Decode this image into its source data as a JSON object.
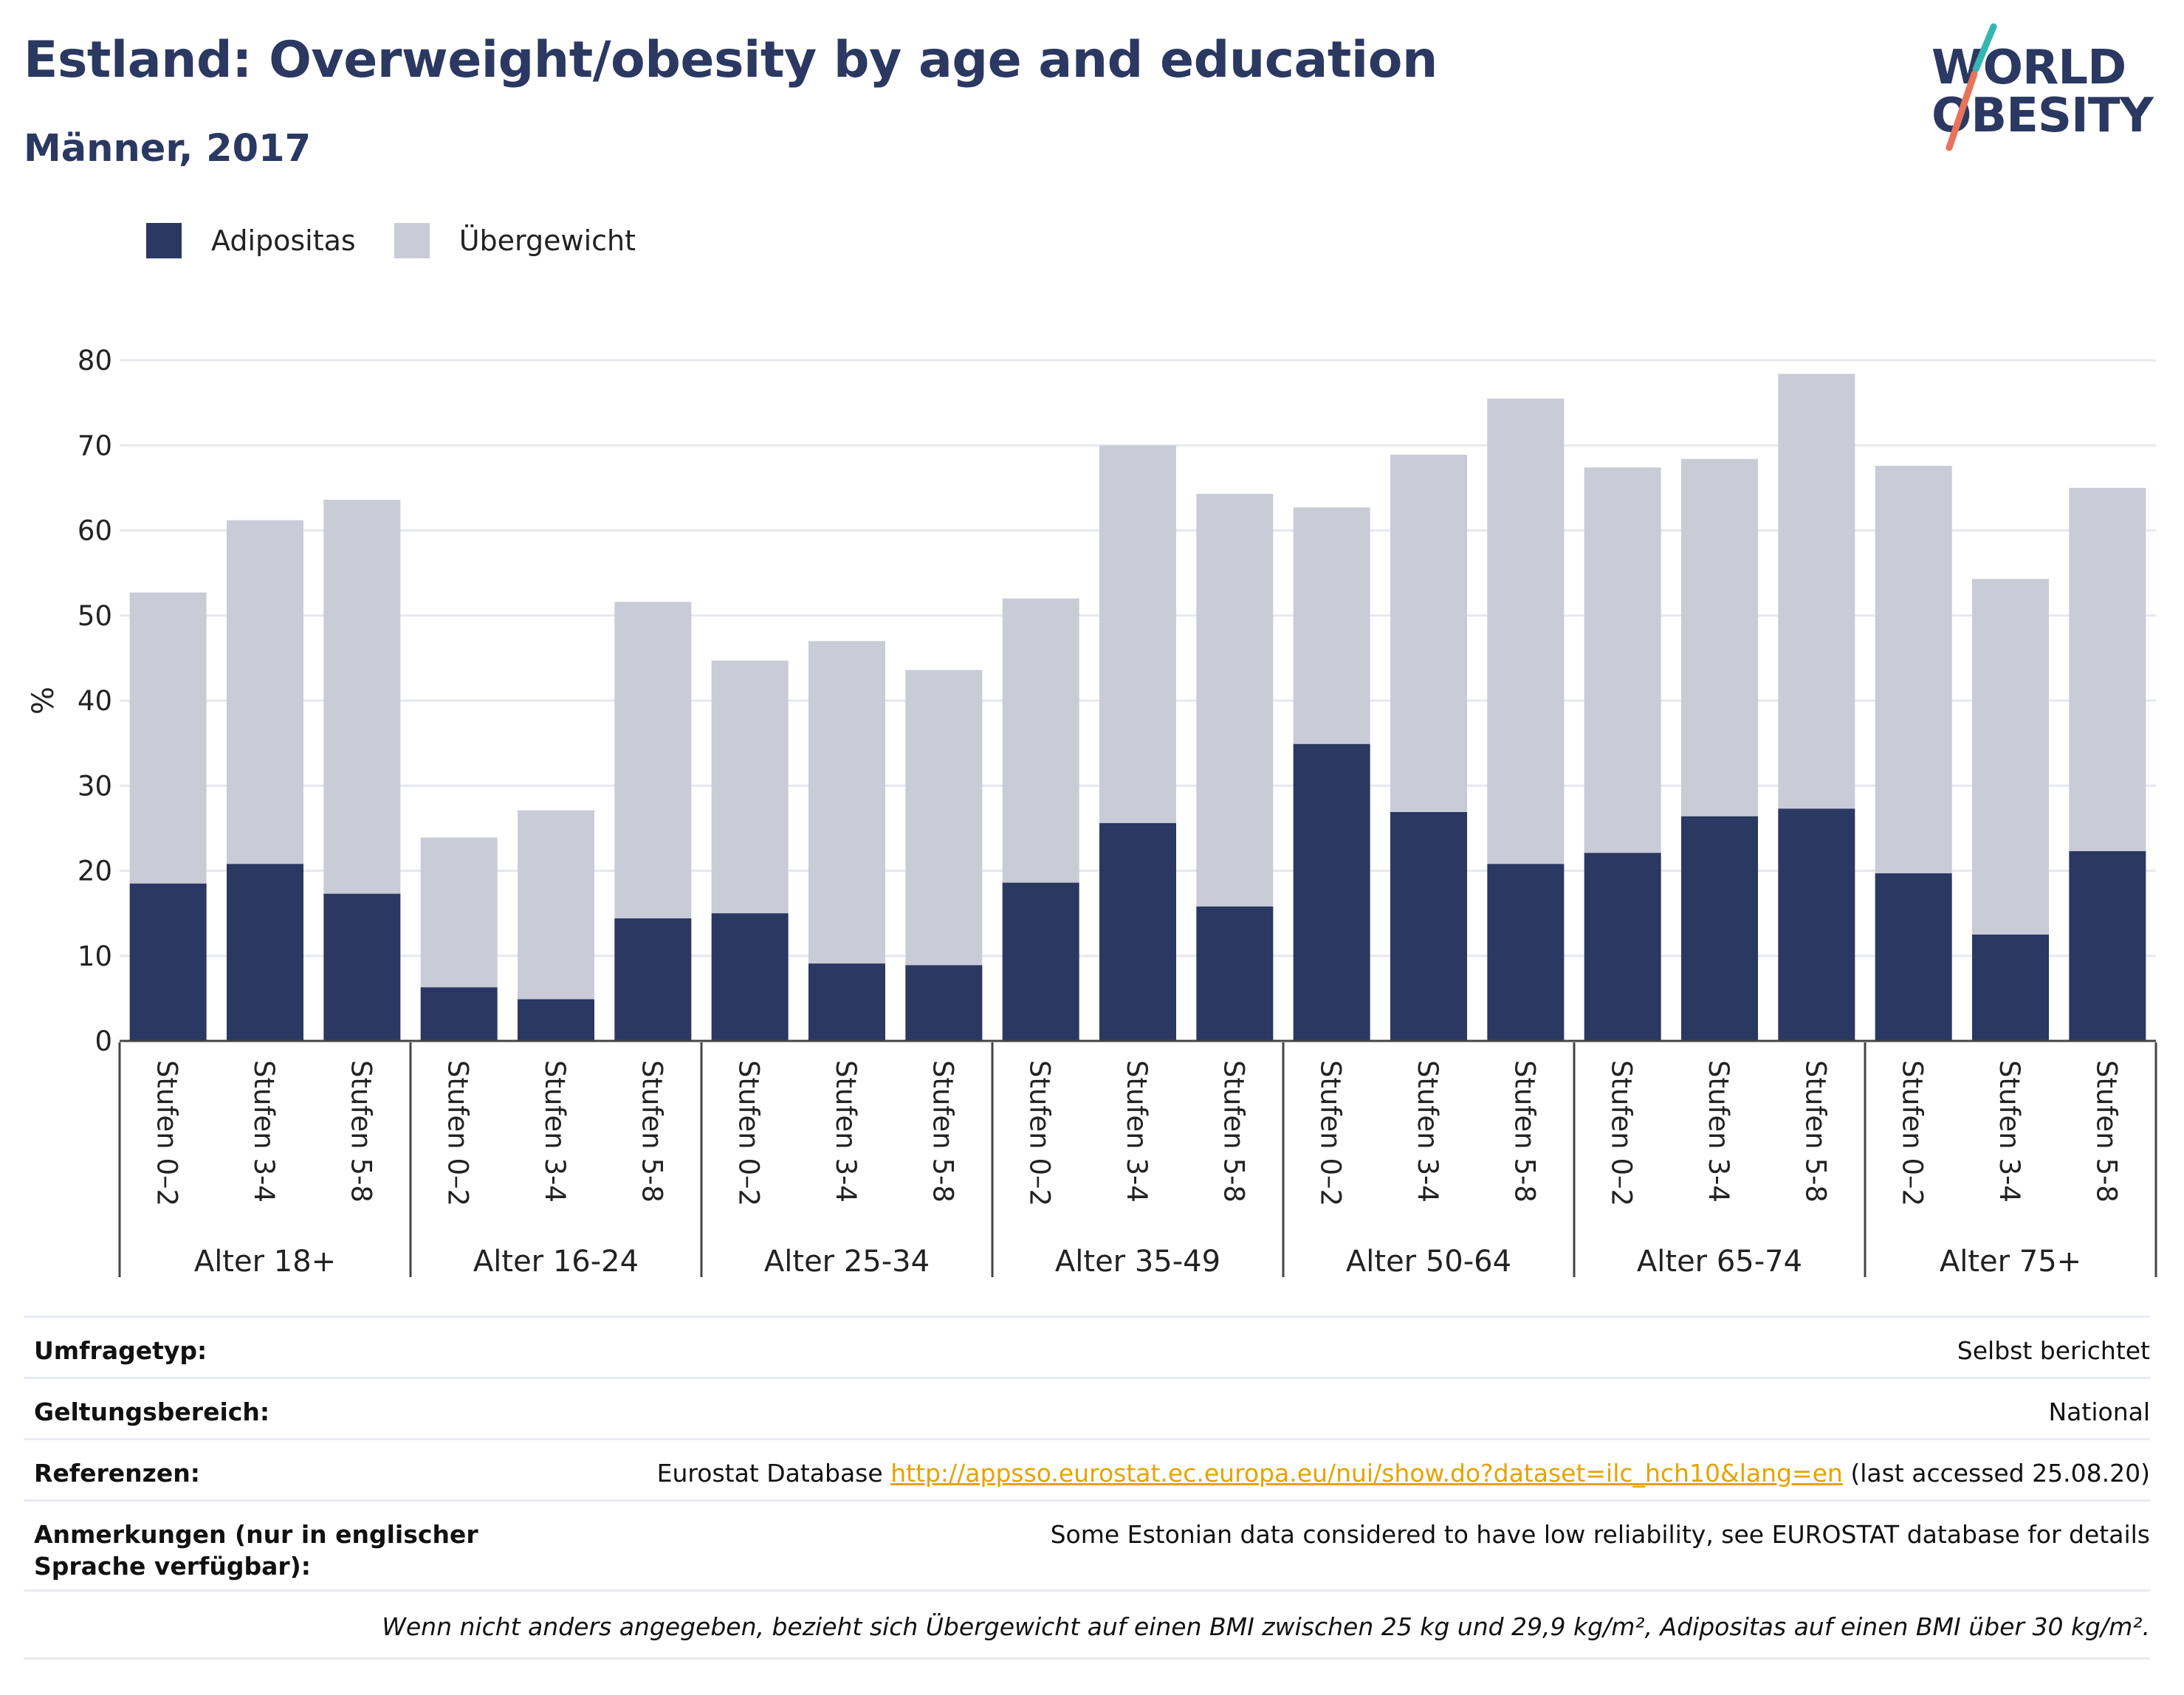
{
  "header": {
    "title": "Estland: Overweight/obesity by age and education",
    "subtitle": "Männer, 2017"
  },
  "logo": {
    "line1": "WORLD",
    "line2": "OBESITY"
  },
  "colors": {
    "adipositas": "#2a3862",
    "uebergewicht": "#c9cbd7",
    "grid": "#e6e8ef",
    "accent_link": "#e6a300"
  },
  "legend": [
    {
      "label": "Adipositas",
      "color": "#2a3862"
    },
    {
      "label": "Übergewicht",
      "color": "#c9cbd7"
    }
  ],
  "chart_data": {
    "type": "bar",
    "stacked": true,
    "ylabel": "%",
    "ylim": [
      0,
      80
    ],
    "yticks": [
      0,
      10,
      20,
      30,
      40,
      50,
      60,
      70,
      80
    ],
    "grid": true,
    "legend_position": "top-left",
    "groups": [
      {
        "label": "Alter 18+",
        "categories": [
          "Stufen 0–2",
          "Stufen 3-4",
          "Stufen 5-8"
        ],
        "obesity": [
          18.5,
          20.8,
          17.3
        ],
        "total": [
          52.7,
          61.2,
          63.6
        ]
      },
      {
        "label": "Alter 16-24",
        "categories": [
          "Stufen 0–2",
          "Stufen 3-4",
          "Stufen 5-8"
        ],
        "obesity": [
          6.3,
          4.9,
          14.4
        ],
        "total": [
          23.9,
          27.1,
          51.6
        ]
      },
      {
        "label": "Alter 25-34",
        "categories": [
          "Stufen 0–2",
          "Stufen 3-4",
          "Stufen 5-8"
        ],
        "obesity": [
          15.0,
          9.1,
          8.9
        ],
        "total": [
          44.7,
          47.0,
          43.6
        ]
      },
      {
        "label": "Alter 35-49",
        "categories": [
          "Stufen 0–2",
          "Stufen 3-4",
          "Stufen 5-8"
        ],
        "obesity": [
          18.6,
          25.6,
          15.8
        ],
        "total": [
          52.0,
          70.0,
          64.3
        ]
      },
      {
        "label": "Alter 50-64",
        "categories": [
          "Stufen 0–2",
          "Stufen 3-4",
          "Stufen 5-8"
        ],
        "obesity": [
          34.9,
          26.9,
          20.8
        ],
        "total": [
          62.7,
          68.9,
          75.5
        ]
      },
      {
        "label": "Alter 65-74",
        "categories": [
          "Stufen 0–2",
          "Stufen 3-4",
          "Stufen 5-8"
        ],
        "obesity": [
          22.1,
          26.4,
          27.3
        ],
        "total": [
          67.4,
          68.4,
          78.4
        ]
      },
      {
        "label": "Alter 75+",
        "categories": [
          "Stufen 0–2",
          "Stufen 3-4",
          "Stufen 5-8"
        ],
        "obesity": [
          19.7,
          12.5,
          22.3
        ],
        "total": [
          67.6,
          54.3,
          65.0
        ]
      }
    ]
  },
  "info": {
    "survey_type": {
      "label": "Umfragetyp:",
      "value": "Selbst berichtet"
    },
    "coverage": {
      "label": "Geltungsbereich:",
      "value": "National"
    },
    "references": {
      "label": "Referenzen:",
      "prefix": "Eurostat Database",
      "link": "http://appsso.eurostat.ec.europa.eu/nui/show.do?dataset=ilc_hch10&lang=en",
      "suffix": "(last accessed 25.08.20)"
    },
    "notes": {
      "label": "Anmerkungen (nur in englischer Sprache verfügbar):",
      "value": "Some Estonian data considered to have low reliability, see EUROSTAT database for details"
    },
    "footnote": "Wenn nicht anders angegeben, bezieht sich Übergewicht auf einen BMI zwischen 25 kg und 29,9 kg/m², Adipositas auf einen BMI über 30 kg/m²."
  }
}
